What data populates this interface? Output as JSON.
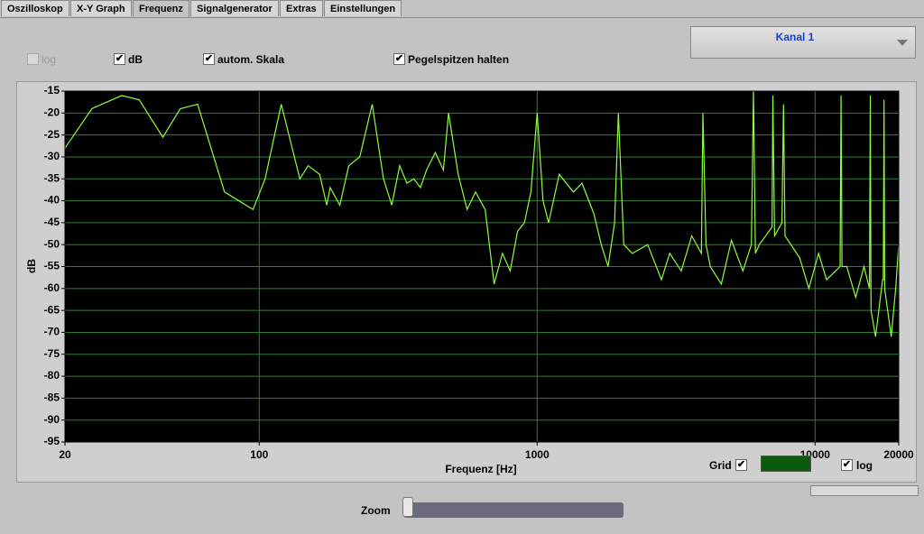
{
  "tabs": [
    {
      "label": "Oszilloskop",
      "active": false
    },
    {
      "label": "X-Y Graph",
      "active": false
    },
    {
      "label": "Frequenz",
      "active": true
    },
    {
      "label": "Signalgenerator",
      "active": false
    },
    {
      "label": "Extras",
      "active": false
    },
    {
      "label": "Einstellungen",
      "active": false
    }
  ],
  "options": [
    {
      "label": "log",
      "checked": false,
      "enabled": false
    },
    {
      "label": "dB",
      "checked": true,
      "enabled": true
    },
    {
      "label": "autom. Skala",
      "checked": true,
      "enabled": true
    },
    {
      "label": "Pegelspitzen halten",
      "checked": true,
      "enabled": true
    }
  ],
  "channel_select": {
    "value": "Kanal 1"
  },
  "chart_data": {
    "type": "line",
    "xlabel": "Frequenz [Hz]",
    "ylabel": "dB",
    "xscale": "log",
    "grid": true,
    "xlim": [
      20,
      20000
    ],
    "ylim": [
      -95,
      -15
    ],
    "xticks": [
      20,
      100,
      1000,
      10000,
      20000
    ],
    "yticks": [
      -15,
      -20,
      -25,
      -30,
      -35,
      -40,
      -45,
      -50,
      -55,
      -60,
      -65,
      -70,
      -75,
      -80,
      -85,
      -90,
      -95
    ],
    "plot_background": "#000000",
    "grid_color": "#2f7f2f",
    "x": [
      20,
      25,
      32,
      37,
      45,
      52,
      60,
      75,
      95,
      105,
      120,
      140,
      150,
      165,
      175,
      180,
      195,
      210,
      230,
      255,
      280,
      300,
      320,
      340,
      360,
      380,
      400,
      430,
      460,
      480,
      520,
      560,
      600,
      650,
      700,
      750,
      800,
      850,
      900,
      950,
      1000,
      1050,
      1100,
      1200,
      1350,
      1450,
      1600,
      1700,
      1800,
      1900,
      1960,
      2050,
      2200,
      2500,
      2800,
      3000,
      3300,
      3600,
      3900,
      3950,
      4050,
      4200,
      4600,
      5000,
      5500,
      5900,
      6000,
      6100,
      6300,
      7000,
      7050,
      7150,
      7300,
      7600,
      7700,
      7800,
      8800,
      9500,
      10300,
      11000,
      12300,
      12400,
      12500,
      13000,
      14000,
      15000,
      15700,
      15800,
      15900,
      16500,
      17500,
      17600,
      17700,
      17800,
      18800,
      19500,
      20000
    ],
    "series": [
      {
        "color": "#8cff3c",
        "values": [
          -28,
          -19,
          -16,
          -17,
          -25.5,
          -19,
          -18,
          -38,
          -42,
          -35,
          -18,
          -35,
          -32,
          -34,
          -41,
          -37,
          -41,
          -32,
          -30,
          -18,
          -35,
          -41,
          -32,
          -36,
          -35,
          -37,
          -33,
          -29,
          -33,
          -20,
          -34,
          -42,
          -38,
          -42,
          -59,
          -52,
          -56,
          -47,
          -45,
          -38,
          -20,
          -40,
          -45,
          -34,
          -38,
          -36,
          -43,
          -50,
          -55,
          -45,
          -20,
          -50,
          -52,
          -50,
          -58,
          -52,
          -56,
          -48,
          -52,
          -20,
          -50,
          -55,
          -59,
          -49,
          -56,
          -50,
          -15,
          -52,
          -50,
          -46,
          -16,
          -48,
          -47,
          -45,
          -18,
          -48,
          -53,
          -60,
          -52,
          -58,
          -55,
          -16,
          -55,
          -55,
          -62,
          -55,
          -60,
          -16,
          -65,
          -71,
          -58,
          -58,
          -17,
          -60,
          -71,
          -60,
          -50
        ]
      }
    ]
  },
  "grid_toggle": {
    "label": "Grid",
    "checked": true,
    "color": "#0b5a0b"
  },
  "log_toggle": {
    "label": "log",
    "checked": true
  },
  "zoom": {
    "label": "Zoom"
  }
}
